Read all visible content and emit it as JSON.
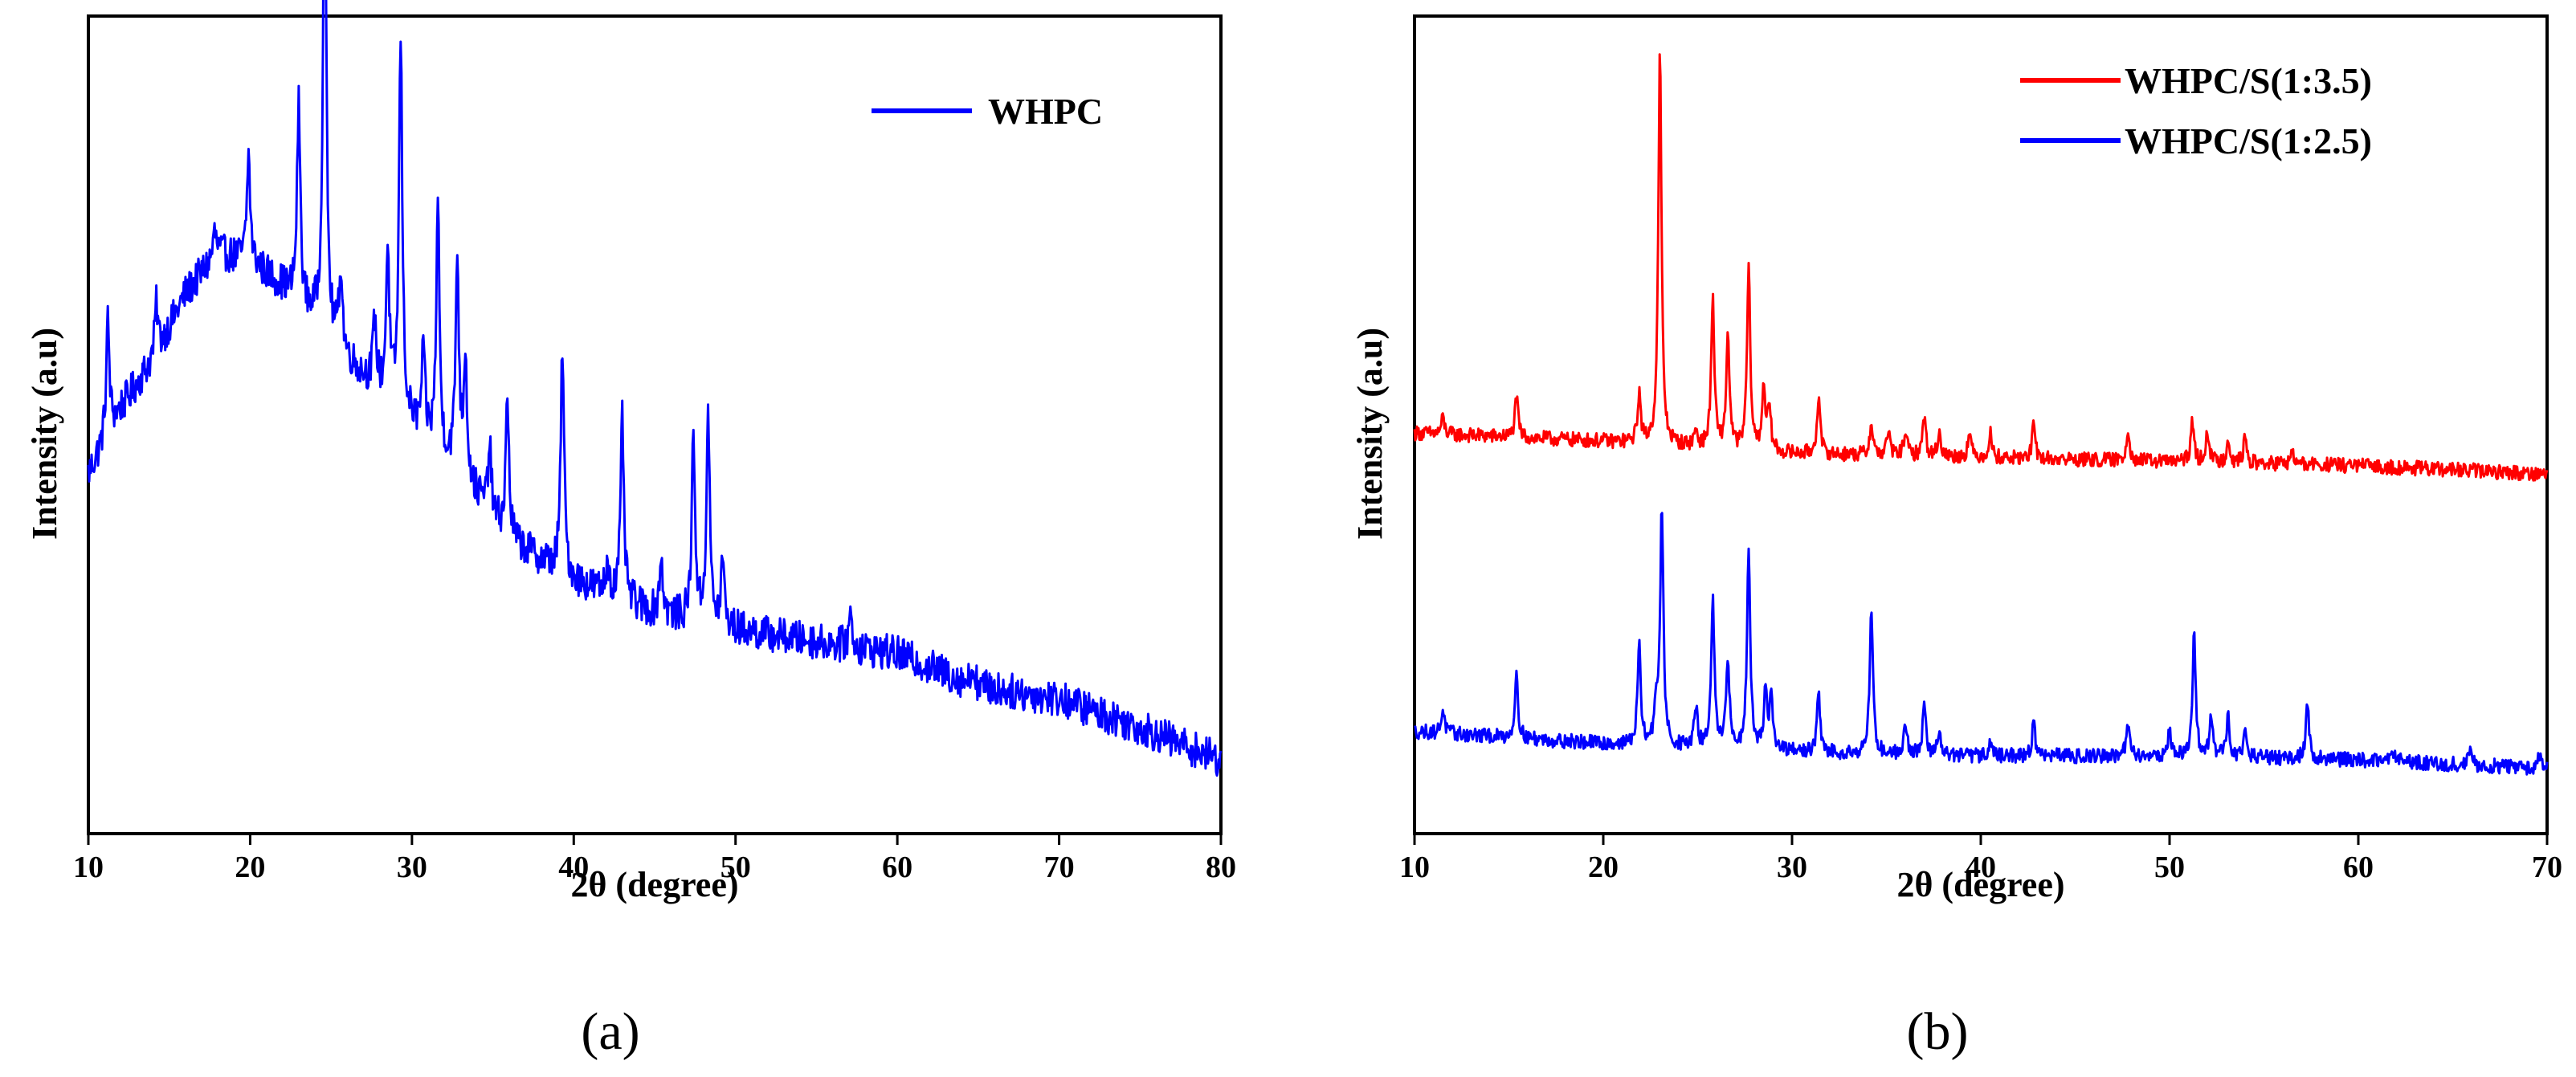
{
  "chart_data": [
    {
      "type": "line",
      "panel_label": "(a)",
      "xlabel": "2θ (degree)",
      "ylabel": "Intensity (a.u)",
      "xlim": [
        10,
        80
      ],
      "ylim": [
        0,
        100
      ],
      "x_ticks": [
        10,
        20,
        30,
        40,
        50,
        60,
        70,
        80
      ],
      "x_tick_labels": [
        "10",
        "20",
        "30",
        "40",
        "50",
        "60",
        "70",
        "80"
      ],
      "legend_position": "top-right",
      "series": [
        {
          "name": "WHPC",
          "color": "#0000ff",
          "baseline": [
            [
              10,
              44
            ],
            [
              12,
              52
            ],
            [
              14,
              58
            ],
            [
              16,
              66
            ],
            [
              18,
              71
            ],
            [
              20,
              70
            ],
            [
              22,
              67
            ],
            [
              24,
              63
            ],
            [
              26,
              58
            ],
            [
              28,
              54
            ],
            [
              30,
              50
            ],
            [
              33,
              44
            ],
            [
              36,
              36
            ],
            [
              40,
              31
            ],
            [
              45,
              27
            ],
            [
              50,
              25
            ],
            [
              55,
              23.5
            ],
            [
              60,
              22
            ],
            [
              65,
              18
            ],
            [
              70,
              16.5
            ],
            [
              75,
              13
            ],
            [
              80,
              9
            ]
          ],
          "peaks": [
            [
              11.2,
              14
            ],
            [
              14.2,
              6
            ],
            [
              17.8,
              3
            ],
            [
              19.9,
              13
            ],
            [
              23.0,
              24
            ],
            [
              24.6,
              62
            ],
            [
              25.6,
              10
            ],
            [
              27.7,
              8
            ],
            [
              28.5,
              18
            ],
            [
              29.3,
              46
            ],
            [
              30.7,
              10
            ],
            [
              31.6,
              30
            ],
            [
              32.8,
              26
            ],
            [
              33.3,
              15
            ],
            [
              34.8,
              8
            ],
            [
              35.9,
              17
            ],
            [
              39.3,
              28
            ],
            [
              42.1,
              4
            ],
            [
              43.0,
              22
            ],
            [
              45.4,
              7
            ],
            [
              47.4,
              23
            ],
            [
              48.3,
              26
            ],
            [
              49.2,
              8
            ],
            [
              57.1,
              4
            ],
            [
              64.7,
              2.5
            ]
          ],
          "peak_width": 0.12,
          "noise_amplitude": 2.2
        }
      ]
    },
    {
      "type": "line",
      "panel_label": "(b)",
      "xlabel": "2θ (degree)",
      "ylabel": "Intensity (a.u)",
      "xlim": [
        10,
        70
      ],
      "ylim": [
        0,
        100
      ],
      "x_ticks": [
        10,
        20,
        30,
        40,
        50,
        60,
        70
      ],
      "x_tick_labels": [
        "10",
        "20",
        "30",
        "40",
        "50",
        "60",
        "70"
      ],
      "legend_position": "top-right",
      "series": [
        {
          "name": "WHPC/S(1:3.5)",
          "color": "#ff0000",
          "baseline": [
            [
              10,
              49
            ],
            [
              20,
              48
            ],
            [
              30,
              46.5
            ],
            [
              40,
              46
            ],
            [
              50,
              45.5
            ],
            [
              60,
              45
            ],
            [
              70,
              44
            ]
          ],
          "peaks": [
            [
              11.5,
              2
            ],
            [
              15.4,
              5
            ],
            [
              21.9,
              6
            ],
            [
              23.0,
              48
            ],
            [
              24.9,
              2
            ],
            [
              25.8,
              18
            ],
            [
              26.6,
              14
            ],
            [
              27.7,
              22
            ],
            [
              28.5,
              8
            ],
            [
              28.8,
              5
            ],
            [
              31.4,
              7
            ],
            [
              34.2,
              4
            ],
            [
              35.1,
              3
            ],
            [
              36.0,
              3
            ],
            [
              37.0,
              5
            ],
            [
              37.8,
              3
            ],
            [
              39.4,
              3
            ],
            [
              40.5,
              3
            ],
            [
              42.8,
              4
            ],
            [
              47.8,
              4
            ],
            [
              51.2,
              5
            ],
            [
              52.0,
              4
            ],
            [
              53.1,
              3
            ],
            [
              54.0,
              3
            ],
            [
              56.5,
              1.5
            ]
          ],
          "peak_width": 0.1,
          "noise_amplitude": 0.9
        },
        {
          "name": "WHPC/S(1:2.5)",
          "color": "#0000ff",
          "baseline": [
            [
              10,
              12.5
            ],
            [
              20,
              11
            ],
            [
              30,
              10
            ],
            [
              40,
              9.5
            ],
            [
              50,
              9.5
            ],
            [
              60,
              9
            ],
            [
              70,
              8
            ]
          ],
          "peaks": [
            [
              11.5,
              3
            ],
            [
              15.4,
              8
            ],
            [
              21.9,
              12
            ],
            [
              22.8,
              5
            ],
            [
              23.1,
              29
            ],
            [
              24.9,
              5
            ],
            [
              25.8,
              18
            ],
            [
              26.6,
              11
            ],
            [
              27.7,
              25
            ],
            [
              28.6,
              8
            ],
            [
              28.9,
              6
            ],
            [
              31.4,
              7
            ],
            [
              34.2,
              18
            ],
            [
              36.0,
              4
            ],
            [
              37.0,
              6
            ],
            [
              37.8,
              3
            ],
            [
              40.5,
              2
            ],
            [
              42.8,
              4
            ],
            [
              47.8,
              4
            ],
            [
              50.0,
              3
            ],
            [
              51.3,
              15
            ],
            [
              52.2,
              5
            ],
            [
              53.1,
              5
            ],
            [
              54.0,
              4
            ],
            [
              57.3,
              7
            ],
            [
              61.9,
              1.5
            ],
            [
              65.9,
              1.5
            ],
            [
              69.6,
              1.5
            ]
          ],
          "peak_width": 0.1,
          "noise_amplitude": 0.9
        }
      ]
    }
  ]
}
